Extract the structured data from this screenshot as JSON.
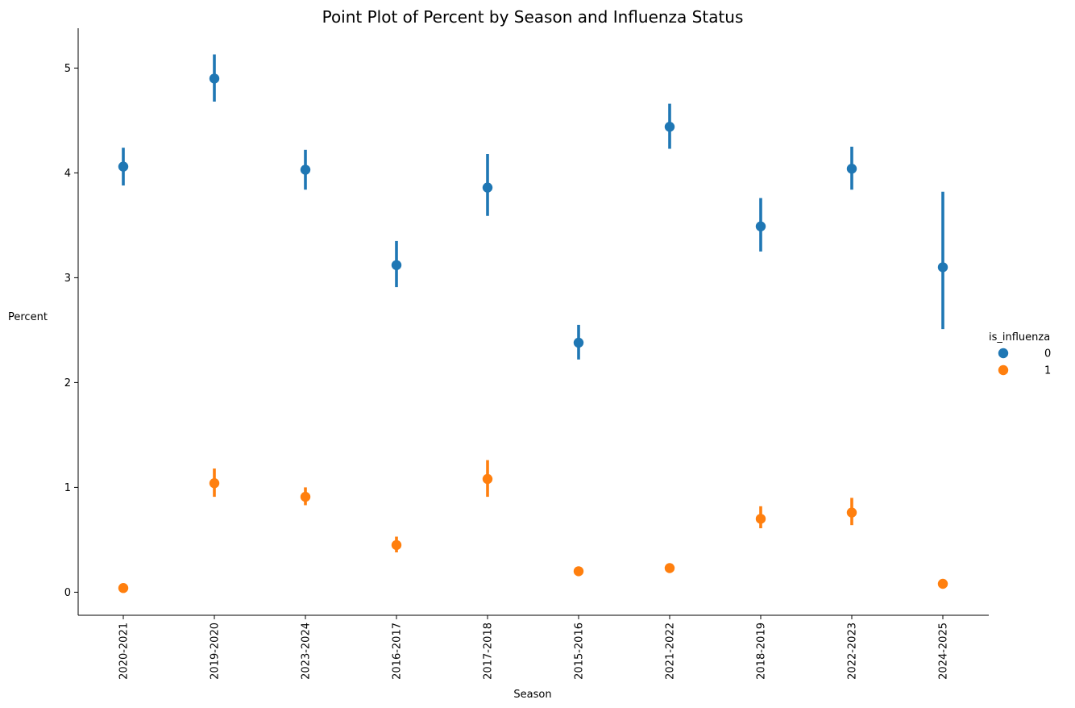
{
  "chart_data": {
    "type": "point",
    "title": "Point Plot of Percent by Season and Influenza Status",
    "xlabel": "Season",
    "ylabel": "Percent",
    "categories": [
      "2020-2021",
      "2019-2020",
      "2023-2024",
      "2016-2017",
      "2017-2018",
      "2015-2016",
      "2021-2022",
      "2018-2019",
      "2022-2023",
      "2024-2025"
    ],
    "yticks": [
      "0",
      "1",
      "2",
      "3",
      "4",
      "5"
    ],
    "ylim": [
      -0.22,
      5.38
    ],
    "grid": false,
    "legend": {
      "title": "is_influenza",
      "placement": "right"
    },
    "series": [
      {
        "name": "0",
        "color": "#1f77b4",
        "values": [
          4.06,
          4.9,
          4.03,
          3.12,
          3.86,
          2.38,
          4.44,
          3.49,
          4.04,
          3.1
        ],
        "ci_low": [
          3.88,
          4.68,
          3.84,
          2.91,
          3.59,
          2.22,
          4.23,
          3.25,
          3.84,
          2.51
        ],
        "ci_high": [
          4.24,
          5.13,
          4.22,
          3.35,
          4.18,
          2.55,
          4.66,
          3.76,
          4.25,
          3.82
        ]
      },
      {
        "name": "1",
        "color": "#ff7f0e",
        "values": [
          0.04,
          1.04,
          0.91,
          0.45,
          1.08,
          0.2,
          0.23,
          0.7,
          0.76,
          0.08
        ],
        "ci_low": [
          0.03,
          0.91,
          0.83,
          0.38,
          0.91,
          0.18,
          0.21,
          0.61,
          0.64,
          0.07
        ],
        "ci_high": [
          0.05,
          1.18,
          1.0,
          0.53,
          1.26,
          0.22,
          0.25,
          0.82,
          0.9,
          0.09
        ]
      }
    ]
  }
}
